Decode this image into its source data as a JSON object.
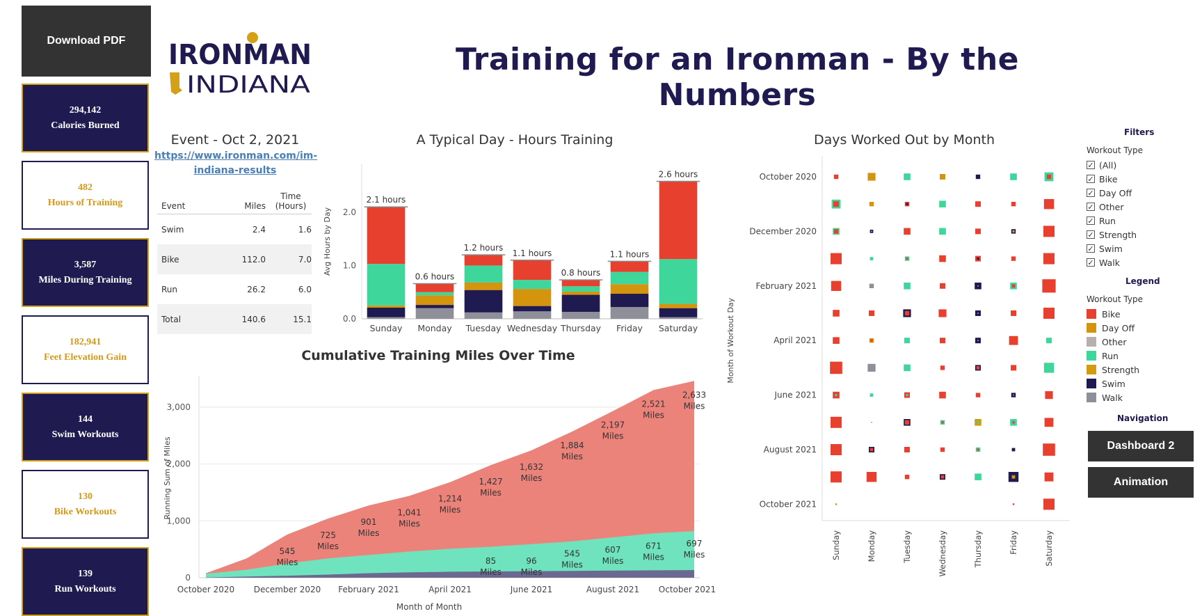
{
  "download_button": "Download PDF",
  "logo": {
    "line1": "IRONMAN",
    "line2": "INDIANA"
  },
  "title": "Training for an Ironman - By the Numbers",
  "kpis": [
    {
      "value": "294,142",
      "label": "Calories Burned",
      "style": "dark"
    },
    {
      "value": "482",
      "label": "Hours of Training",
      "style": "light"
    },
    {
      "value": "3,587",
      "label": "Miles During Training",
      "style": "dark"
    },
    {
      "value": "182,941",
      "label": "Feet Elevation Gain",
      "style": "light"
    },
    {
      "value": "144",
      "label": "Swim Workouts",
      "style": "dark"
    },
    {
      "value": "130",
      "label": "Bike Workouts",
      "style": "light"
    },
    {
      "value": "139",
      "label": "Run Workouts",
      "style": "dark"
    }
  ],
  "event": {
    "title": "Event - Oct 2, 2021",
    "link_line1": "https://www.ironman.com/im-",
    "link_line2": "indiana-results",
    "headers": [
      "Event",
      "Miles",
      "Time (Hours)"
    ],
    "rows": [
      [
        "Swim",
        "2.4",
        "1.6"
      ],
      [
        "Bike",
        "112.0",
        "7.0"
      ],
      [
        "Run",
        "26.2",
        "6.0"
      ],
      [
        "Total",
        "140.6",
        "15.1"
      ]
    ]
  },
  "colors": {
    "Bike": "#e8402e",
    "Day Off": "#d4940e",
    "Other": "#b8b0ac",
    "Run": "#3fd69b",
    "Strength": "#d19c12",
    "Swim": "#1f1a50",
    "Walk": "#8e8f99",
    "title": "#1f1a50",
    "kpi_dark": "#1f1a50",
    "kpi_gold": "#d4a017"
  },
  "chart_data": [
    {
      "type": "bar",
      "title": "A Typical Day - Hours Training",
      "ylabel": "Avg Hours by Day",
      "ylim": [
        0,
        2.9
      ],
      "yticks": [
        "0.0",
        "1.0",
        "2.0"
      ],
      "categories": [
        "Sunday",
        "Monday",
        "Tuesday",
        "Wednesday",
        "Thursday",
        "Friday",
        "Saturday"
      ],
      "totals_labels": [
        "2.1 hours",
        "0.6 hours",
        "1.2 hours",
        "1.1 hours",
        "0.8 hours",
        "1.1 hours",
        "2.6 hours"
      ],
      "stacked": true,
      "series": [
        {
          "name": "Walk",
          "values": [
            0.03,
            0.2,
            0.12,
            0.14,
            0.13,
            0.22,
            0.03
          ]
        },
        {
          "name": "Swim",
          "values": [
            0.18,
            0.06,
            0.42,
            0.1,
            0.32,
            0.25,
            0.17
          ]
        },
        {
          "name": "Day Off",
          "values": [
            0.04,
            0.18,
            0.14,
            0.32,
            0.06,
            0.18,
            0.08
          ]
        },
        {
          "name": "Run",
          "values": [
            0.78,
            0.06,
            0.32,
            0.17,
            0.1,
            0.23,
            0.84
          ]
        },
        {
          "name": "Bike",
          "values": [
            1.07,
            0.16,
            0.2,
            0.37,
            0.12,
            0.2,
            1.46
          ]
        }
      ]
    },
    {
      "type": "area",
      "title": "Cumulative Training Miles Over Time",
      "xlabel": "Month of Month",
      "ylabel": "Running Sum of Miles",
      "ylim": [
        0,
        3500
      ],
      "yticks": [
        "0",
        "1,000",
        "2,000",
        "3,000"
      ],
      "x": [
        "Oct 2020",
        "Nov 2020",
        "Dec 2020",
        "Jan 2021",
        "Feb 2021",
        "Mar 2021",
        "Apr 2021",
        "May 2021",
        "Jun 2021",
        "Jul 2021",
        "Aug 2021",
        "Sep 2021",
        "Oct 2021"
      ],
      "x_tick_labels": [
        "October 2020",
        "December 2020",
        "February 2021",
        "April 2021",
        "June 2021",
        "August 2021",
        "October 2021"
      ],
      "series": [
        {
          "name": "Swim",
          "values": [
            5,
            20,
            35,
            55,
            80,
            95,
            105,
            110,
            115,
            120,
            125,
            130,
            135
          ]
        },
        {
          "name": "Run",
          "values": [
            70,
            140,
            250,
            340,
            400,
            460,
            510,
            545,
            590,
            640,
            710,
            780,
            820
          ]
        },
        {
          "name": "Bike",
          "values": [
            80,
            340,
            760,
            1040,
            1270,
            1440,
            1680,
            1980,
            2240,
            2570,
            2930,
            3300,
            3460
          ]
        }
      ],
      "data_labels": [
        {
          "text": "545 Miles",
          "x": "Dec 2020",
          "y": 545
        },
        {
          "text": "725 Miles",
          "x": "Jan 2021",
          "y": 725
        },
        {
          "text": "901 Miles",
          "x": "Feb 2021",
          "y": 901
        },
        {
          "text": "1,041 Miles",
          "x": "Mar 2021",
          "y": 1041
        },
        {
          "text": "1,214 Miles",
          "x": "Apr 2021",
          "y": 1214
        },
        {
          "text": "1,427 Miles",
          "x": "May 2021",
          "y": 1427
        },
        {
          "text": "1,632 Miles",
          "x": "Jun 2021",
          "y": 1632
        },
        {
          "text": "1,884 Miles",
          "x": "Jul 2021",
          "y": 1884
        },
        {
          "text": "2,197 Miles",
          "x": "Aug 2021",
          "y": 2197
        },
        {
          "text": "2,521 Miles",
          "x": "Sep 2021",
          "y": 2521
        },
        {
          "text": "2,633 Miles",
          "x": "Oct 2021",
          "y": 2633
        },
        {
          "text": "85 Miles",
          "x": "May 2021",
          "y": 85
        },
        {
          "text": "96 Miles",
          "x": "Jun 2021",
          "y": 96
        },
        {
          "text": "545 Miles",
          "x": "Jul 2021",
          "y": 545
        },
        {
          "text": "607 Miles",
          "x": "Aug 2021",
          "y": 607
        },
        {
          "text": "671 Miles",
          "x": "Sep 2021",
          "y": 671
        },
        {
          "text": "697 Miles",
          "x": "Oct 2021",
          "y": 697
        }
      ]
    },
    {
      "type": "heatmap",
      "title": "Days Worked Out by Month",
      "ylabel": "Month of Workout Day",
      "x": [
        "Sunday",
        "Monday",
        "Tuesday",
        "Wednesday",
        "Thursday",
        "Friday",
        "Saturday"
      ],
      "y": [
        "October 2020",
        "November 2020",
        "December 2020",
        "January 2021",
        "February 2021",
        "March 2021",
        "April 2021",
        "May 2021",
        "June 2021",
        "July 2021",
        "August 2021",
        "September 2021",
        "October 2021"
      ],
      "y_tick_labels": [
        "October 2020",
        "December 2020",
        "February 2021",
        "April 2021",
        "June 2021",
        "August 2021",
        "October 2021"
      ],
      "cells": [
        [
          [
            "Bike",
            0.4
          ],
          [
            "Day Off",
            0.7
          ],
          [
            "Run",
            0.6
          ],
          [
            "Day Off",
            0.5
          ],
          [
            "Swim",
            0.4
          ],
          [
            "Run",
            0.6
          ],
          [
            "Run",
            0.8,
            "Bike",
            0.4
          ]
        ],
        [
          [
            "Run",
            0.8,
            "Bike",
            0.5
          ],
          [
            "Day Off",
            0.4
          ],
          [
            "Bike",
            0.4,
            "Swim",
            0.2
          ],
          [
            "Run",
            0.6
          ],
          [
            "Bike",
            0.5
          ],
          [
            "Bike",
            0.4
          ],
          [
            "Bike",
            0.9
          ]
        ],
        [
          [
            "Run",
            0.6,
            "Bike",
            0.4
          ],
          [
            "Swim",
            0.3,
            "Other",
            0.1
          ],
          [
            "Bike",
            0.6
          ],
          [
            "Run",
            0.6
          ],
          [
            "Bike",
            0.5
          ],
          [
            "Swim",
            0.4,
            "Day Off",
            0.2
          ],
          [
            "Bike",
            1.0
          ]
        ],
        [
          [
            "Bike",
            1.0
          ],
          [
            "Run",
            0.3
          ],
          [
            "Run",
            0.4,
            "Bike",
            0.2
          ],
          [
            "Bike",
            0.6
          ],
          [
            "Bike",
            0.5,
            "Swim",
            0.2
          ],
          [
            "Bike",
            0.4
          ],
          [
            "Bike",
            1.0
          ]
        ],
        [
          [
            "Bike",
            0.9
          ],
          [
            "Walk",
            0.4
          ],
          [
            "Run",
            0.6
          ],
          [
            "Bike",
            0.5
          ],
          [
            "Swim",
            0.6,
            "Other",
            0.1
          ],
          [
            "Run",
            0.6,
            "Bike",
            0.3
          ],
          [
            "Bike",
            1.2
          ]
        ],
        [
          [
            "Bike",
            0.6
          ],
          [
            "Bike",
            0.5
          ],
          [
            "Swim",
            0.7,
            "Bike",
            0.4
          ],
          [
            "Bike",
            0.7
          ],
          [
            "Swim",
            0.5,
            "Other",
            0.1
          ],
          [
            "Bike",
            0.5
          ],
          [
            "Bike",
            1.0
          ]
        ],
        [
          [
            "Bike",
            0.6
          ],
          [
            "Day Off",
            0.4,
            "Bike",
            0.2
          ],
          [
            "Run",
            0.5
          ],
          [
            "Bike",
            0.5
          ],
          [
            "Swim",
            0.5,
            "Other",
            0.1
          ],
          [
            "Bike",
            0.8
          ],
          [
            "Run",
            0.5
          ]
        ],
        [
          [
            "Bike",
            1.1
          ],
          [
            "Walk",
            0.7
          ],
          [
            "Run",
            0.6
          ],
          [
            "Bike",
            0.4
          ],
          [
            "Swim",
            0.5,
            "Bike",
            0.3
          ],
          [
            "Bike",
            0.5
          ],
          [
            "Run",
            0.9
          ]
        ],
        [
          [
            "Bike",
            0.6,
            "Run",
            0.2
          ],
          [
            "Run",
            0.3
          ],
          [
            "Bike",
            0.5,
            "Run",
            0.2
          ],
          [
            "Bike",
            0.6
          ],
          [
            "Bike",
            0.4
          ],
          [
            "Swim",
            0.4,
            "Other",
            0.1
          ],
          [
            "Bike",
            0.7
          ]
        ],
        [
          [
            "Bike",
            1.0
          ],
          [
            "Day Off",
            0.1
          ],
          [
            "Swim",
            0.6,
            "Bike",
            0.4
          ],
          [
            "Run",
            0.4,
            "Bike",
            0.2
          ],
          [
            "Strength",
            0.6,
            "Run",
            0.2
          ],
          [
            "Run",
            0.6,
            "Bike",
            0.2
          ],
          [
            "Bike",
            0.8
          ]
        ],
        [
          [
            "Bike",
            1.0
          ],
          [
            "Swim",
            0.5,
            "Bike",
            0.3
          ],
          [
            "Bike",
            0.5
          ],
          [
            "Bike",
            0.4
          ],
          [
            "Run",
            0.4,
            "Bike",
            0.2
          ],
          [
            "Swim",
            0.3
          ],
          [
            "Bike",
            1.1
          ]
        ],
        [
          [
            "Bike",
            1.0
          ],
          [
            "Bike",
            0.9
          ],
          [
            "Bike",
            0.4
          ],
          [
            "Swim",
            0.5,
            "Bike",
            0.3
          ],
          [
            "Run",
            0.6
          ],
          [
            "Swim",
            0.9,
            "Day Off",
            0.3
          ],
          [
            "Bike",
            0.8
          ]
        ],
        [
          [
            "Day Off",
            0.15
          ],
          null,
          null,
          null,
          null,
          [
            "Bike",
            0.15
          ],
          [
            "Bike",
            1.0
          ]
        ]
      ]
    }
  ],
  "filters": {
    "heading": "Filters",
    "label": "Workout Type",
    "options": [
      "(All)",
      "Bike",
      "Day Off",
      "Other",
      "Run",
      "Strength",
      "Swim",
      "Walk"
    ]
  },
  "legend": {
    "heading": "Legend",
    "label": "Workout Type",
    "items": [
      "Bike",
      "Day Off",
      "Other",
      "Run",
      "Strength",
      "Swim",
      "Walk"
    ]
  },
  "navigation": {
    "heading": "Navigation",
    "buttons": [
      "Dashboard 2",
      "Animation"
    ]
  }
}
